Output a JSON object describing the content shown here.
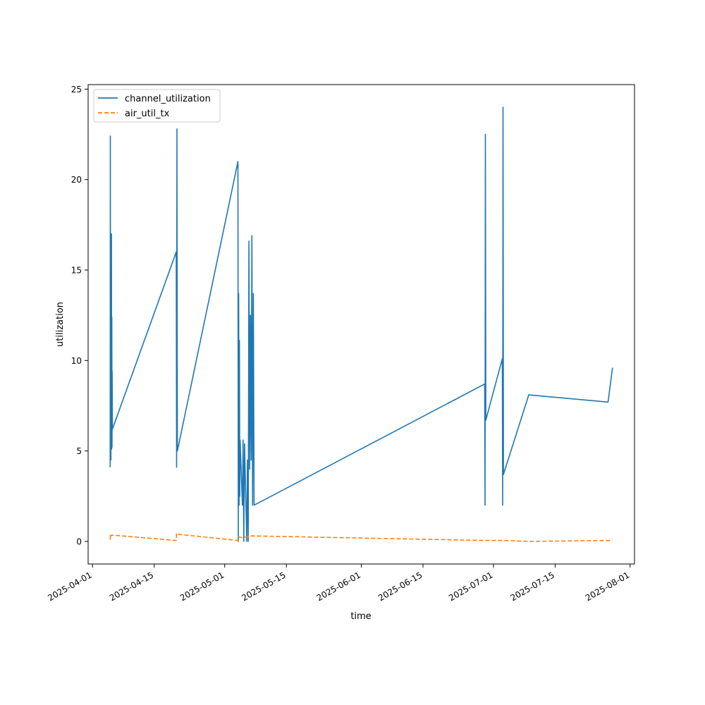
{
  "chart_data": {
    "type": "line",
    "title": "",
    "xlabel": "time",
    "ylabel": "utilization",
    "xlim": [
      "2025-03-31",
      "2025-08-02"
    ],
    "ylim": [
      -1.25,
      25.25
    ],
    "grid": false,
    "legend_position": "top-left",
    "x_ticks": [
      "2025-04-01",
      "2025-04-15",
      "2025-05-01",
      "2025-05-15",
      "2025-06-01",
      "2025-06-15",
      "2025-07-01",
      "2025-07-15",
      "2025-08-01"
    ],
    "y_ticks": [
      0,
      5,
      10,
      15,
      20,
      25
    ],
    "series": [
      {
        "name": "channel_utilization",
        "color": "#1f77b4",
        "style": "solid",
        "points": [
          [
            "2025-04-05T00:00",
            4.1
          ],
          [
            "2025-04-05T01:00",
            22.4
          ],
          [
            "2025-04-05T02:00",
            4.5
          ],
          [
            "2025-04-05T03:00",
            15.7
          ],
          [
            "2025-04-05T04:00",
            4.5
          ],
          [
            "2025-04-05T05:00",
            15.5
          ],
          [
            "2025-04-05T06:00",
            5.3
          ],
          [
            "2025-04-05T07:00",
            17.0
          ],
          [
            "2025-04-05T08:00",
            5.1
          ],
          [
            "2025-04-05T09:00",
            12.4
          ],
          [
            "2025-04-05T10:00",
            5.2
          ],
          [
            "2025-04-05T11:00",
            9.4
          ],
          [
            "2025-04-05T12:00",
            6.2
          ],
          [
            "2025-04-20T00:00",
            16.0
          ],
          [
            "2025-04-20T02:00",
            4.1
          ],
          [
            "2025-04-20T04:00",
            22.8
          ],
          [
            "2025-04-20T06:00",
            5.0
          ],
          [
            "2025-05-04T00:00",
            21.0
          ],
          [
            "2025-05-04T02:00",
            0.0
          ],
          [
            "2025-05-04T04:00",
            13.7
          ],
          [
            "2025-05-04T06:00",
            2.0
          ],
          [
            "2025-05-04T08:00",
            11.1
          ],
          [
            "2025-05-04T10:00",
            2.5
          ],
          [
            "2025-05-04T12:00",
            5.6
          ],
          [
            "2025-05-05T00:00",
            2.0
          ],
          [
            "2025-05-05T04:00",
            5.6
          ],
          [
            "2025-05-05T08:00",
            0.0
          ],
          [
            "2025-05-05T12:00",
            5.4
          ],
          [
            "2025-05-06T00:00",
            0.0
          ],
          [
            "2025-05-06T04:00",
            4.5
          ],
          [
            "2025-05-06T08:00",
            0.0
          ],
          [
            "2025-05-06T12:00",
            16.6
          ],
          [
            "2025-05-06T16:00",
            4.0
          ],
          [
            "2025-05-06T20:00",
            12.5
          ],
          [
            "2025-05-07T00:00",
            4.5
          ],
          [
            "2025-05-07T04:00",
            16.9
          ],
          [
            "2025-05-07T08:00",
            2.0
          ],
          [
            "2025-05-07T12:00",
            13.7
          ],
          [
            "2025-05-07T16:00",
            2.0
          ],
          [
            "2025-06-29T00:00",
            8.7
          ],
          [
            "2025-06-29T02:00",
            2.0
          ],
          [
            "2025-06-29T04:00",
            22.5
          ],
          [
            "2025-06-29T06:00",
            6.7
          ],
          [
            "2025-07-03T00:00",
            10.1
          ],
          [
            "2025-07-03T02:00",
            2.0
          ],
          [
            "2025-07-03T04:00",
            24.0
          ],
          [
            "2025-07-03T06:00",
            3.7
          ],
          [
            "2025-07-09T00:00",
            8.1
          ],
          [
            "2025-07-27T00:00",
            7.7
          ],
          [
            "2025-07-28T00:00",
            9.6
          ]
        ]
      },
      {
        "name": "air_util_tx",
        "color": "#ff7f0e",
        "style": "dashed",
        "points": [
          [
            "2025-04-05T00:00",
            0.1
          ],
          [
            "2025-04-05T02:00",
            0.4
          ],
          [
            "2025-04-05T04:00",
            0.3
          ],
          [
            "2025-04-05T06:00",
            0.35
          ],
          [
            "2025-04-20T00:00",
            0.05
          ],
          [
            "2025-04-20T02:00",
            0.45
          ],
          [
            "2025-04-20T06:00",
            0.4
          ],
          [
            "2025-05-04T00:00",
            0.05
          ],
          [
            "2025-05-04T04:00",
            0.25
          ],
          [
            "2025-05-05T00:00",
            0.2
          ],
          [
            "2025-05-06T00:00",
            0.25
          ],
          [
            "2025-05-07T00:00",
            0.3
          ],
          [
            "2025-05-07T16:00",
            0.3
          ],
          [
            "2025-06-29T00:00",
            0.05
          ],
          [
            "2025-07-03T00:00",
            0.05
          ],
          [
            "2025-07-09T00:00",
            0.0
          ],
          [
            "2025-07-28T00:00",
            0.05
          ]
        ]
      }
    ]
  }
}
